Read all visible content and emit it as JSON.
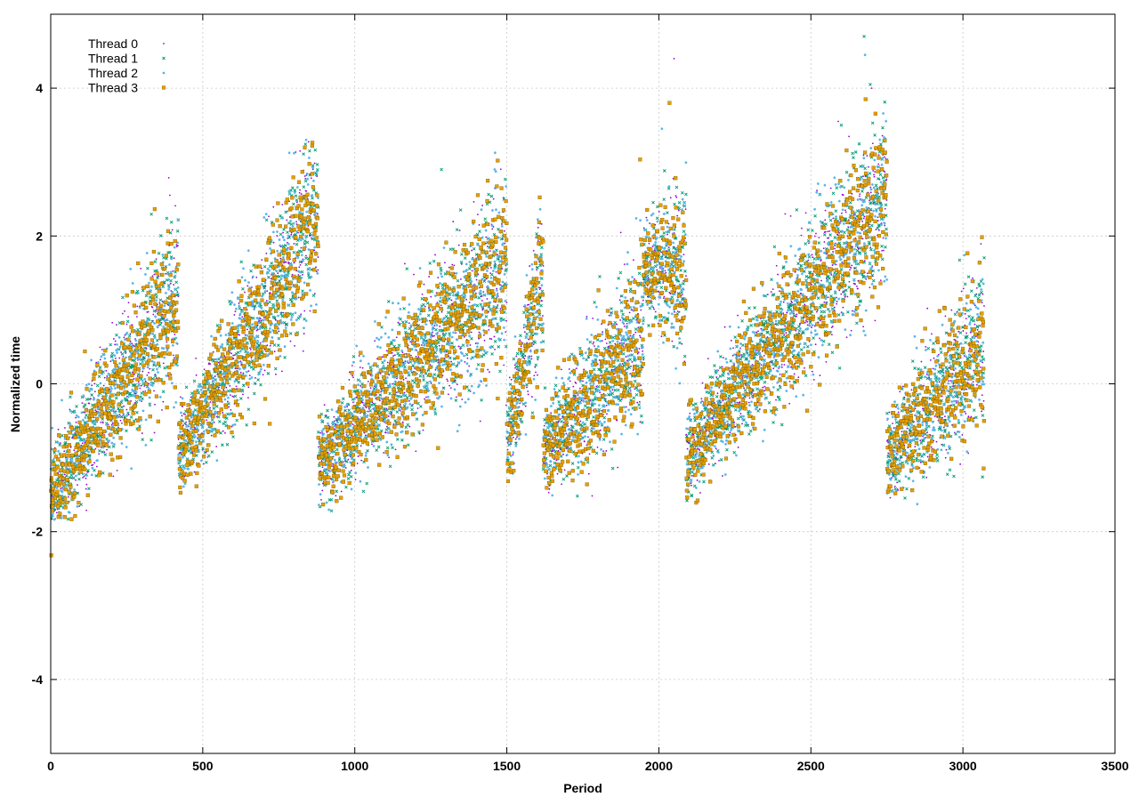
{
  "chart_data": {
    "type": "scatter",
    "title": "",
    "xlabel": "Period",
    "ylabel": "Normalized time",
    "xlim": [
      0,
      3500
    ],
    "ylim": [
      -5,
      5
    ],
    "xticks": [
      0,
      500,
      1000,
      1500,
      2000,
      2500,
      3000,
      3500
    ],
    "yticks": [
      -4,
      -2,
      0,
      2,
      4
    ],
    "xtick_labels": [
      "0",
      "500",
      "1000",
      "1500",
      "2000",
      "2500",
      "3000",
      "3500"
    ],
    "ytick_labels": [
      "-4",
      "-2",
      "0",
      "2",
      "4"
    ],
    "grid": true,
    "legend_position": "top-left",
    "approx_points_per_series": 3070,
    "series": [
      {
        "name": "Thread 0",
        "color": "#9400d3",
        "marker": "dot"
      },
      {
        "name": "Thread 1",
        "color": "#009e73",
        "marker": "cross"
      },
      {
        "name": "Thread 2",
        "color": "#56b4e9",
        "marker": "star"
      },
      {
        "name": "Thread 3",
        "color": "#e69f00",
        "marker": "square"
      }
    ],
    "trend_segments": [
      {
        "x": [
          0,
          420
        ],
        "y": [
          -1.5,
          1.2
        ]
      },
      {
        "x": [
          420,
          880
        ],
        "y": [
          -1.0,
          2.3
        ]
      },
      {
        "x": [
          880,
          1500
        ],
        "y": [
          -1.1,
          1.6
        ]
      },
      {
        "x": [
          1500,
          1620
        ],
        "y": [
          -0.8,
          1.5
        ]
      },
      {
        "x": [
          1620,
          1950
        ],
        "y": [
          -0.9,
          0.7
        ]
      },
      {
        "x": [
          1950,
          2090
        ],
        "y": [
          1.6,
          1.6
        ]
      },
      {
        "x": [
          2090,
          2750
        ],
        "y": [
          -1.0,
          2.6
        ]
      },
      {
        "x": [
          2750,
          3080
        ],
        "y": [
          -1.0,
          0.6
        ]
      }
    ],
    "extreme_points": [
      {
        "x": 2,
        "y": -2.32
      },
      {
        "x": 2050,
        "y": 4.4
      },
      {
        "x": 2675,
        "y": 4.7
      },
      {
        "x": 2678,
        "y": 4.45
      },
      {
        "x": 2680,
        "y": 3.85
      },
      {
        "x": 2700,
        "y": 4.0
      },
      {
        "x": 2695,
        "y": 4.05
      },
      {
        "x": 2010,
        "y": 3.45
      },
      {
        "x": 2035,
        "y": 3.8
      },
      {
        "x": 2590,
        "y": 3.55
      },
      {
        "x": 2600,
        "y": 3.5
      },
      {
        "x": 840,
        "y": 3.3
      },
      {
        "x": 860,
        "y": 3.22
      },
      {
        "x": 820,
        "y": 3.15
      },
      {
        "x": 1285,
        "y": 2.9
      },
      {
        "x": 1460,
        "y": 2.9
      },
      {
        "x": 385,
        "y": 1.9
      }
    ]
  }
}
